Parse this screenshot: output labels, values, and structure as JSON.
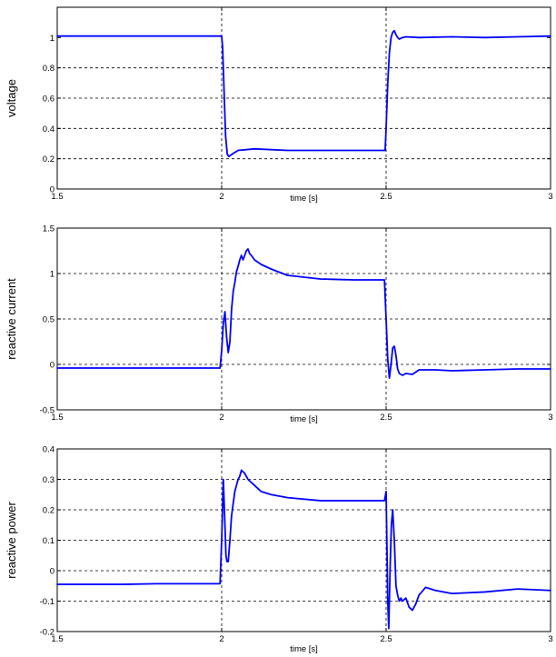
{
  "line_color": "#0000ff",
  "grid_color": "#000000",
  "chart_data": [
    {
      "type": "line",
      "xlabel": "time [s]",
      "ylabel": "voltage",
      "xlim": [
        1.5,
        3
      ],
      "ylim": [
        0,
        1.2
      ],
      "xticks": [
        1.5,
        2,
        2.5,
        3
      ],
      "xtick_labels": [
        "1.5",
        "2",
        "2.5",
        "3"
      ],
      "yticks": [
        0,
        0.2,
        0.4,
        0.6,
        0.8,
        1
      ],
      "ytick_labels": [
        "0",
        "0.2",
        "0.4",
        "0.6",
        "0.8",
        "1"
      ],
      "grid": true,
      "series": [
        {
          "x": [
            1.5,
            1.8,
            2.0,
            2.003,
            2.008,
            2.012,
            2.017,
            2.022,
            2.035,
            2.05,
            2.1,
            2.2,
            2.3,
            2.4,
            2.497,
            2.5,
            2.505,
            2.51,
            2.515,
            2.52,
            2.525,
            2.53,
            2.535,
            2.54,
            2.55,
            2.56,
            2.6,
            2.7,
            2.8,
            2.9,
            3.0
          ],
          "y": [
            1.01,
            1.01,
            1.01,
            0.93,
            0.6,
            0.35,
            0.23,
            0.215,
            0.235,
            0.255,
            0.265,
            0.255,
            0.255,
            0.255,
            0.255,
            0.4,
            0.7,
            0.9,
            1.0,
            1.035,
            1.045,
            1.02,
            1.0,
            0.99,
            1.0,
            1.005,
            1.0,
            1.005,
            1.0,
            1.005,
            1.01
          ]
        }
      ]
    },
    {
      "type": "line",
      "xlabel": "time [s]",
      "ylabel": "reactive current",
      "xlim": [
        1.5,
        3
      ],
      "ylim": [
        -0.5,
        1.5
      ],
      "xticks": [
        1.5,
        2,
        2.5,
        3
      ],
      "xtick_labels": [
        "1.5",
        "2",
        "2.5",
        "3"
      ],
      "yticks": [
        -0.5,
        0,
        0.5,
        1,
        1.5
      ],
      "ytick_labels": [
        "-0.5",
        "0",
        "0.5",
        "1",
        "1.5"
      ],
      "grid": true,
      "series": [
        {
          "x": [
            1.5,
            1.6,
            1.7,
            1.8,
            1.9,
            1.995,
            2.0,
            2.005,
            2.01,
            2.015,
            2.02,
            2.025,
            2.03,
            2.035,
            2.04,
            2.045,
            2.05,
            2.055,
            2.06,
            2.065,
            2.07,
            2.075,
            2.08,
            2.085,
            2.09,
            2.1,
            2.12,
            2.15,
            2.2,
            2.3,
            2.4,
            2.495,
            2.5,
            2.505,
            2.51,
            2.515,
            2.52,
            2.525,
            2.53,
            2.535,
            2.54,
            2.55,
            2.56,
            2.58,
            2.6,
            2.65,
            2.7,
            2.8,
            2.9,
            3.0
          ],
          "y": [
            -0.04,
            -0.04,
            -0.04,
            -0.04,
            -0.04,
            -0.04,
            0.15,
            0.45,
            0.58,
            0.3,
            0.13,
            0.25,
            0.6,
            0.8,
            0.9,
            1.02,
            1.08,
            1.15,
            1.2,
            1.15,
            1.2,
            1.25,
            1.27,
            1.22,
            1.2,
            1.15,
            1.1,
            1.05,
            0.98,
            0.94,
            0.93,
            0.93,
            0.5,
            0.05,
            -0.15,
            0.0,
            0.18,
            0.2,
            0.1,
            -0.05,
            -0.1,
            -0.12,
            -0.1,
            -0.11,
            -0.06,
            -0.06,
            -0.07,
            -0.06,
            -0.05,
            -0.05
          ]
        }
      ]
    },
    {
      "type": "line",
      "xlabel": "time [s]",
      "ylabel": "reactive power",
      "xlim": [
        1.5,
        3
      ],
      "ylim": [
        -0.2,
        0.4
      ],
      "xticks": [
        1.5,
        2,
        2.5,
        3
      ],
      "xtick_labels": [
        "1.5",
        "2",
        "2.5",
        "3"
      ],
      "yticks": [
        -0.2,
        -0.1,
        0,
        0.1,
        0.2,
        0.3,
        0.4
      ],
      "ytick_labels": [
        "-0.2",
        "-0.1",
        "0",
        "0.1",
        "0.2",
        "0.3",
        "0.4"
      ],
      "grid": true,
      "series": [
        {
          "x": [
            1.5,
            1.6,
            1.7,
            1.8,
            1.9,
            1.995,
            2.0,
            2.005,
            2.01,
            2.013,
            2.016,
            2.02,
            2.025,
            2.03,
            2.035,
            2.04,
            2.045,
            2.05,
            2.055,
            2.06,
            2.065,
            2.07,
            2.075,
            2.08,
            2.085,
            2.09,
            2.1,
            2.12,
            2.15,
            2.2,
            2.3,
            2.4,
            2.495,
            2.5,
            2.505,
            2.508,
            2.512,
            2.516,
            2.52,
            2.525,
            2.53,
            2.535,
            2.54,
            2.545,
            2.55,
            2.56,
            2.57,
            2.58,
            2.59,
            2.6,
            2.62,
            2.65,
            2.7,
            2.8,
            2.9,
            3.0
          ],
          "y": [
            -0.045,
            -0.045,
            -0.045,
            -0.043,
            -0.043,
            -0.043,
            0.1,
            0.3,
            0.15,
            0.05,
            0.03,
            0.03,
            0.1,
            0.18,
            0.22,
            0.26,
            0.28,
            0.3,
            0.31,
            0.33,
            0.325,
            0.32,
            0.31,
            0.3,
            0.295,
            0.29,
            0.28,
            0.26,
            0.25,
            0.24,
            0.23,
            0.23,
            0.23,
            0.26,
            -0.1,
            -0.19,
            0.0,
            0.15,
            0.2,
            0.1,
            -0.05,
            -0.08,
            -0.1,
            -0.09,
            -0.1,
            -0.09,
            -0.12,
            -0.13,
            -0.11,
            -0.08,
            -0.055,
            -0.065,
            -0.075,
            -0.07,
            -0.06,
            -0.065
          ]
        }
      ]
    }
  ]
}
